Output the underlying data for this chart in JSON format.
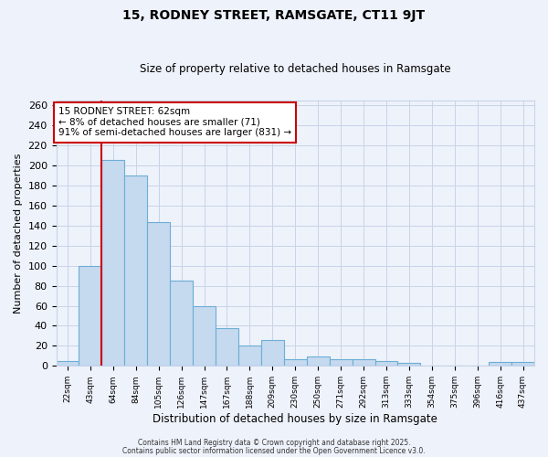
{
  "title": "15, RODNEY STREET, RAMSGATE, CT11 9JT",
  "subtitle": "Size of property relative to detached houses in Ramsgate",
  "xlabel": "Distribution of detached houses by size in Ramsgate",
  "ylabel": "Number of detached properties",
  "bar_labels": [
    "22sqm",
    "43sqm",
    "64sqm",
    "84sqm",
    "105sqm",
    "126sqm",
    "147sqm",
    "167sqm",
    "188sqm",
    "209sqm",
    "230sqm",
    "250sqm",
    "271sqm",
    "292sqm",
    "313sqm",
    "333sqm",
    "354sqm",
    "375sqm",
    "396sqm",
    "416sqm",
    "437sqm"
  ],
  "bar_values": [
    5,
    100,
    205,
    190,
    143,
    85,
    60,
    38,
    20,
    26,
    7,
    9,
    7,
    7,
    5,
    3,
    0,
    0,
    0,
    4,
    4
  ],
  "bar_color": "#c5d9ef",
  "bar_edge_color": "#6baed6",
  "vline_color": "#cc0000",
  "annotation_title": "15 RODNEY STREET: 62sqm",
  "annotation_line1": "← 8% of detached houses are smaller (71)",
  "annotation_line2": "91% of semi-detached houses are larger (831) →",
  "annotation_box_color": "#cc0000",
  "ylim": [
    0,
    265
  ],
  "yticks": [
    0,
    20,
    40,
    60,
    80,
    100,
    120,
    140,
    160,
    180,
    200,
    220,
    240,
    260
  ],
  "footer1": "Contains HM Land Registry data © Crown copyright and database right 2025.",
  "footer2": "Contains public sector information licensed under the Open Government Licence v3.0.",
  "bg_color": "#eef2fb",
  "grid_color": "#c8d4e8",
  "title_fontsize": 10,
  "subtitle_fontsize": 8.5
}
